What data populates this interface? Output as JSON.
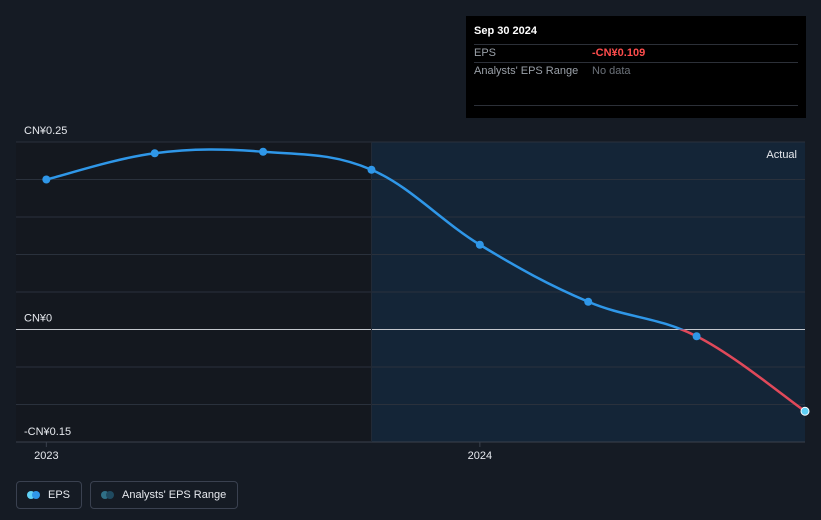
{
  "tooltip": {
    "date": "Sep 30 2024",
    "rows": [
      {
        "label": "EPS",
        "value": "-CN¥0.109"
      },
      {
        "label": "Analysts' EPS Range",
        "value": "No data"
      }
    ]
  },
  "legend": {
    "eps_label": "EPS",
    "range_label": "Analysts' EPS Range"
  },
  "colors": {
    "eps_line": "#2f97e8",
    "negative_line": "#e0495a",
    "forecast_area": "#142537",
    "past_area": "#14181f",
    "background": "#151b24"
  },
  "chart_data": {
    "type": "line",
    "region_label": "Actual",
    "ylim": [
      -0.15,
      0.25
    ],
    "yticks": [
      {
        "value": 0.25,
        "label": "CN¥0.25"
      },
      {
        "value": 0,
        "label": "CN¥0"
      },
      {
        "value": -0.15,
        "label": "-CN¥0.15"
      }
    ],
    "xticks": [
      {
        "value": 2023.0,
        "label": "2023"
      },
      {
        "value": 2024.0,
        "label": "2024"
      }
    ],
    "xlim": [
      2022.93,
      2024.75
    ],
    "actual_region_start": 2023.75,
    "series": [
      {
        "name": "EPS",
        "points": [
          {
            "x": 2023.0,
            "y": 0.2
          },
          {
            "x": 2023.25,
            "y": 0.235
          },
          {
            "x": 2023.5,
            "y": 0.237
          },
          {
            "x": 2023.75,
            "y": 0.213
          },
          {
            "x": 2024.0,
            "y": 0.113
          },
          {
            "x": 2024.25,
            "y": 0.037
          },
          {
            "x": 2024.5,
            "y": -0.009
          },
          {
            "x": 2024.75,
            "y": -0.109
          }
        ]
      }
    ]
  }
}
